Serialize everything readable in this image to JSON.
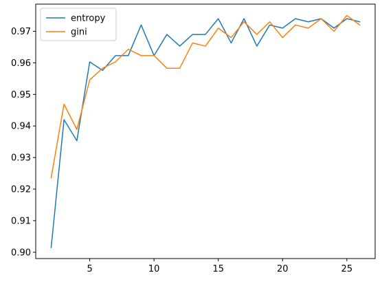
{
  "chart_data": {
    "type": "line",
    "title": "",
    "xlabel": "",
    "ylabel": "",
    "xlim": [
      0.8,
      27.2
    ],
    "ylim": [
      0.898,
      0.9786
    ],
    "x_ticks": [
      5,
      10,
      15,
      20,
      25
    ],
    "x_tick_labels": [
      "5",
      "10",
      "15",
      "20",
      "25"
    ],
    "y_ticks": [
      0.9,
      0.91,
      0.92,
      0.93,
      0.94,
      0.95,
      0.96,
      0.97
    ],
    "y_tick_labels": [
      "0.90",
      "0.91",
      "0.92",
      "0.93",
      "0.94",
      "0.95",
      "0.96",
      "0.97"
    ],
    "grid": false,
    "legend_position": "top-left",
    "x": [
      2,
      3,
      4,
      5,
      6,
      7,
      8,
      9,
      10,
      11,
      12,
      13,
      14,
      15,
      16,
      17,
      18,
      19,
      20,
      21,
      22,
      23,
      24,
      25,
      26
    ],
    "series": [
      {
        "name": "entropy",
        "color": "#1f77b4",
        "values": [
          0.9015,
          0.942,
          0.9353,
          0.9603,
          0.9576,
          0.9623,
          0.9623,
          0.972,
          0.9623,
          0.969,
          0.9653,
          0.969,
          0.969,
          0.974,
          0.9663,
          0.974,
          0.9653,
          0.972,
          0.971,
          0.974,
          0.973,
          0.974,
          0.971,
          0.974,
          0.973
        ]
      },
      {
        "name": "gini",
        "color": "#ff7f0e",
        "values": [
          0.9236,
          0.9469,
          0.9389,
          0.9546,
          0.9583,
          0.9603,
          0.9643,
          0.9623,
          0.9623,
          0.9583,
          0.9583,
          0.9663,
          0.9653,
          0.971,
          0.968,
          0.973,
          0.969,
          0.973,
          0.968,
          0.972,
          0.971,
          0.974,
          0.97,
          0.975,
          0.972
        ]
      }
    ]
  }
}
